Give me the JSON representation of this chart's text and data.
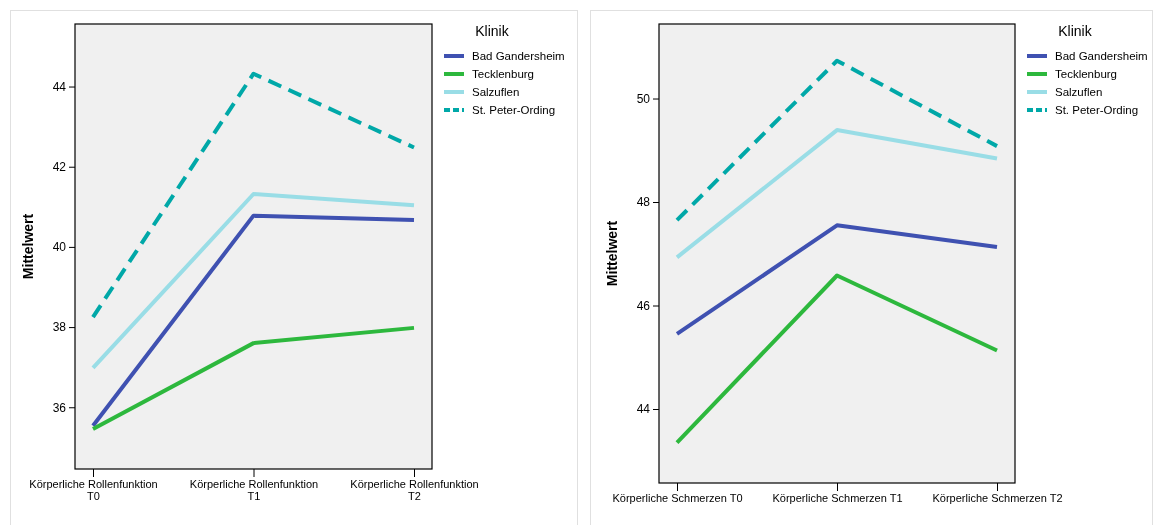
{
  "chart_data": [
    {
      "type": "line",
      "ylabel": "Mittelwert",
      "legend_title": "Klinik",
      "legend": "top right",
      "grid": false,
      "ylim": [
        34.46,
        45.56
      ],
      "yticks": [
        36,
        38,
        40,
        42,
        44
      ],
      "categories": [
        "Körperliche Rollenfunktion T0",
        "Körperliche Rollenfunktion T1",
        "Körperliche Rollenfunktion T2"
      ],
      "series": [
        {
          "name": "Bad Gandersheim",
          "color": "#3f51b1",
          "line_style": "solid",
          "values": [
            35.54,
            40.78,
            40.67
          ]
        },
        {
          "name": "Tecklenburg",
          "color": "#2db83d",
          "line_style": "solid",
          "values": [
            35.46,
            37.6,
            37.98
          ]
        },
        {
          "name": "Salzuflen",
          "color": "#99dde6",
          "line_style": "solid",
          "values": [
            36.98,
            41.32,
            41.04
          ]
        },
        {
          "name": "St. Peter-Ording",
          "color": "#00a8a8",
          "line_style": "dashed",
          "values": [
            38.25,
            44.32,
            42.48
          ]
        }
      ]
    },
    {
      "type": "line",
      "ylabel": "Mittelwert",
      "legend_title": "Klinik",
      "legend": "top right",
      "grid": false,
      "ylim": [
        42.57,
        51.44
      ],
      "yticks": [
        44,
        46,
        48,
        50
      ],
      "categories": [
        "Körperliche Schmerzen T0",
        "Körperliche Schmerzen T1",
        "Körperliche Schmerzen T2"
      ],
      "series": [
        {
          "name": "Bad Gandersheim",
          "color": "#3f51b1",
          "line_style": "solid",
          "values": [
            45.45,
            47.55,
            47.13
          ]
        },
        {
          "name": "Tecklenburg",
          "color": "#2db83d",
          "line_style": "solid",
          "values": [
            43.35,
            46.58,
            45.13
          ]
        },
        {
          "name": "Salzuflen",
          "color": "#99dde6",
          "line_style": "solid",
          "values": [
            46.93,
            49.39,
            48.84
          ]
        },
        {
          "name": "St. Peter-Ording",
          "color": "#00a8a8",
          "line_style": "dashed",
          "values": [
            47.65,
            50.73,
            49.08
          ]
        }
      ]
    }
  ]
}
